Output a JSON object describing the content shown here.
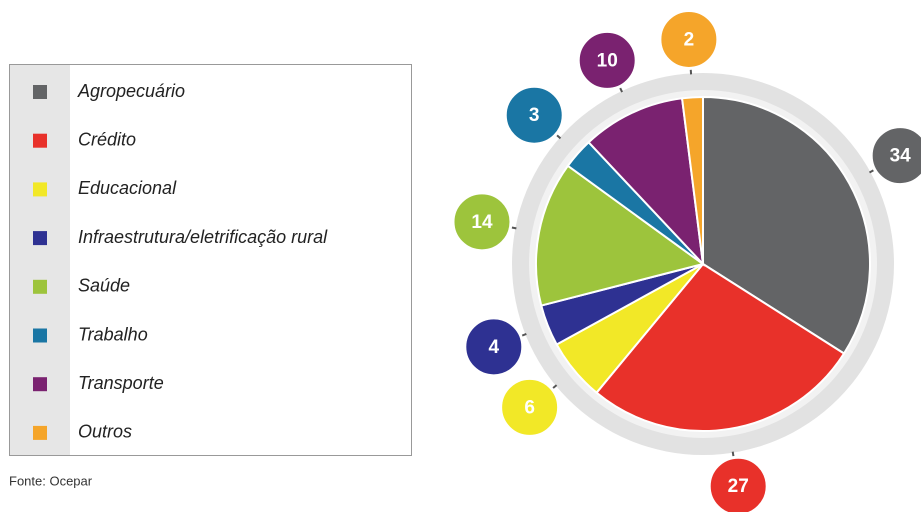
{
  "chart_data": {
    "type": "pie",
    "categories": [
      "Agropecuário",
      "Crédito",
      "Educacional",
      "Infraestrutura/eletrificação rural",
      "Saúde",
      "Trabalho",
      "Transporte",
      "Outros"
    ],
    "values": [
      34,
      27,
      6,
      4,
      14,
      3,
      10,
      2
    ],
    "colors": [
      "#636466",
      "#e8312a",
      "#f2e827",
      "#2e3192",
      "#9dc43c",
      "#1a76a4",
      "#7a2270",
      "#f5a52a"
    ],
    "source": "Fonte: Ocepar"
  }
}
